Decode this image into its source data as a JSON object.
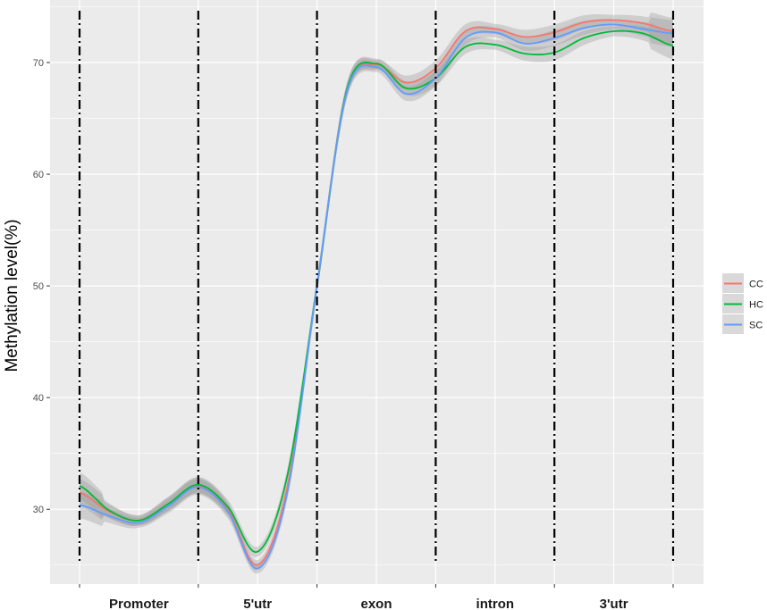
{
  "chart_data": {
    "type": "line",
    "title": "",
    "xlabel": "",
    "ylabel": "Methylation level(%)",
    "categories": [
      "Promoter",
      "5'utr",
      "exon",
      "intron",
      "3'utr"
    ],
    "yticks": [
      30,
      40,
      50,
      60,
      70
    ],
    "ylim": [
      23.3,
      75.6
    ],
    "xlim": [
      0,
      5
    ],
    "grid": true,
    "boundaries": [
      0,
      1,
      2,
      3,
      4,
      5
    ],
    "legend_position": "right",
    "x": [
      0,
      0.25,
      0.5,
      0.75,
      1,
      1.25,
      1.5,
      1.75,
      2,
      2.25,
      2.5,
      2.75,
      3,
      3.25,
      3.5,
      3.75,
      4,
      4.25,
      4.5,
      4.75,
      5
    ],
    "series": [
      {
        "name": "CC",
        "color": "#F8766D",
        "values": [
          31.5,
          29.8,
          29.0,
          30.5,
          32.1,
          30.0,
          25.0,
          32.0,
          50.0,
          67.5,
          69.8,
          68.2,
          69.5,
          72.8,
          73.0,
          72.3,
          72.7,
          73.6,
          73.8,
          73.5,
          72.8
        ]
      },
      {
        "name": "HC",
        "color": "#00BA38",
        "values": [
          32.1,
          29.9,
          29.0,
          30.5,
          32.2,
          30.2,
          26.2,
          33.0,
          50.0,
          67.5,
          69.9,
          67.7,
          68.6,
          71.4,
          71.6,
          70.8,
          70.9,
          72.2,
          72.8,
          72.6,
          71.5
        ]
      },
      {
        "name": "SC",
        "color": "#619CFF",
        "values": [
          30.4,
          29.4,
          28.8,
          30.3,
          32.0,
          29.8,
          24.7,
          31.5,
          50.0,
          67.3,
          69.6,
          67.2,
          68.6,
          72.2,
          72.7,
          71.7,
          72.2,
          73.1,
          73.4,
          73.0,
          72.6
        ]
      }
    ]
  }
}
